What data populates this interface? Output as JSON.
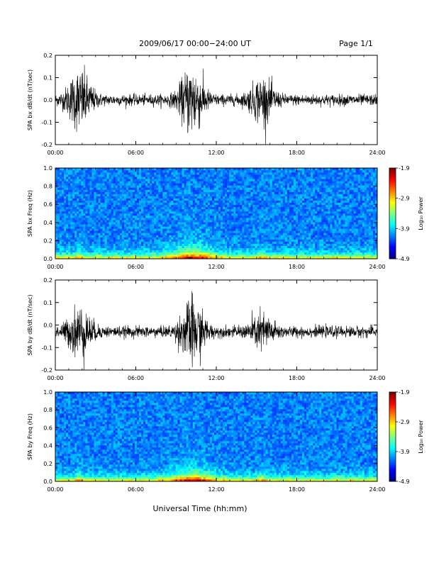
{
  "header": {
    "title": "2009/06/17  00:00−24:00 UT",
    "page": "Page 1/1"
  },
  "xaxis": {
    "label": "Universal Time (hh:mm)",
    "ticks": [
      "00:00",
      "06:00",
      "12:00",
      "18:00",
      "24:00"
    ]
  },
  "colorbar": {
    "label": "Log₁₀ Power",
    "ticks": [
      "-1.9",
      "-2.9",
      "-3.9",
      "-4.9"
    ]
  },
  "chart_data": [
    {
      "type": "line",
      "ylabel": "SPA bx dB/dt (nT/sec)",
      "ylim": [
        -0.2,
        0.2
      ],
      "yticks": [
        "0.2",
        "0.1",
        "0.0",
        "-0.1",
        "-0.2"
      ],
      "xlim_hours": [
        0,
        24
      ],
      "baseline": 0.0,
      "activity": [
        {
          "t": 1.8,
          "amp": 0.11
        },
        {
          "t": 10.2,
          "amp": 0.13
        },
        {
          "t": 15.4,
          "amp": 0.08
        }
      ]
    },
    {
      "type": "heatmap",
      "ylabel": "SPA bx Freq (Hz)",
      "ylim": [
        0.0,
        1.0
      ],
      "yticks": [
        "1.0",
        "0.8",
        "0.6",
        "0.4",
        "0.2",
        "0.0"
      ],
      "color_range": [
        -4.9,
        -1.9
      ]
    },
    {
      "type": "line",
      "ylabel": "SPA by dB/dt (nT/sec)",
      "ylim": [
        -0.2,
        0.2
      ],
      "yticks": [
        "0.2",
        "0.1",
        "0.0",
        "-0.1",
        "-0.2"
      ],
      "xlim_hours": [
        0,
        24
      ],
      "baseline": -0.03,
      "activity": [
        {
          "t": 1.8,
          "amp": 0.09
        },
        {
          "t": 10.2,
          "amp": 0.12
        },
        {
          "t": 15.4,
          "amp": 0.06
        }
      ]
    },
    {
      "type": "heatmap",
      "ylabel": "SPA by Freq (Hz)",
      "ylim": [
        0.0,
        1.0
      ],
      "yticks": [
        "1.0",
        "0.8",
        "0.6",
        "0.4",
        "0.2",
        "0.0"
      ],
      "color_range": [
        -4.9,
        -1.9
      ]
    }
  ]
}
